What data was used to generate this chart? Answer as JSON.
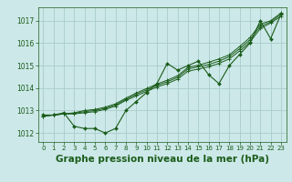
{
  "background_color": "#cce8e8",
  "plot_bg_color": "#cce8e8",
  "grid_color": "#aacccc",
  "line_color": "#1a5c1a",
  "xlabel": "Graphe pression niveau de la mer (hPa)",
  "xlabel_fontsize": 7.5,
  "ylim": [
    1011.6,
    1017.6
  ],
  "xlim": [
    -0.5,
    23.5
  ],
  "yticks": [
    1012,
    1013,
    1014,
    1015,
    1016,
    1017
  ],
  "xticks": [
    0,
    1,
    2,
    3,
    4,
    5,
    6,
    7,
    8,
    9,
    10,
    11,
    12,
    13,
    14,
    15,
    16,
    17,
    18,
    19,
    20,
    21,
    22,
    23
  ],
  "series": [
    [
      1012.8,
      1012.8,
      1012.9,
      1012.3,
      1012.2,
      1012.2,
      1012.0,
      1012.2,
      1013.0,
      1013.4,
      1013.8,
      1014.2,
      1015.1,
      1014.8,
      1015.0,
      1015.2,
      1014.6,
      1014.2,
      1015.0,
      1015.5,
      1016.0,
      1017.0,
      1016.2,
      1017.3
    ],
    [
      1012.75,
      1012.8,
      1012.85,
      1012.85,
      1012.9,
      1012.95,
      1013.05,
      1013.2,
      1013.45,
      1013.65,
      1013.85,
      1014.05,
      1014.2,
      1014.4,
      1014.75,
      1014.85,
      1014.95,
      1015.1,
      1015.3,
      1015.65,
      1016.05,
      1016.65,
      1016.9,
      1017.2
    ],
    [
      1012.75,
      1012.8,
      1012.85,
      1012.88,
      1012.95,
      1013.0,
      1013.1,
      1013.25,
      1013.5,
      1013.72,
      1013.92,
      1014.12,
      1014.28,
      1014.48,
      1014.85,
      1014.95,
      1015.05,
      1015.2,
      1015.4,
      1015.75,
      1016.15,
      1016.75,
      1016.95,
      1017.28
    ],
    [
      1012.75,
      1012.8,
      1012.85,
      1012.9,
      1013.0,
      1013.05,
      1013.15,
      1013.3,
      1013.55,
      1013.78,
      1013.98,
      1014.18,
      1014.35,
      1014.55,
      1014.92,
      1015.02,
      1015.15,
      1015.3,
      1015.48,
      1015.85,
      1016.25,
      1016.85,
      1017.0,
      1017.35
    ]
  ]
}
